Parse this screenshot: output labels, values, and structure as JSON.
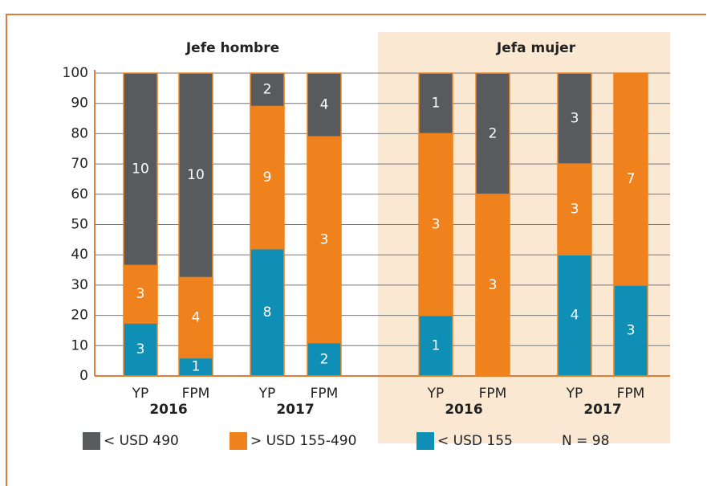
{
  "chart_data": {
    "type": "stacked_bar",
    "panels": [
      "Jefe hombre",
      "Jefa mujer"
    ],
    "categories": [
      "YP",
      "FPM",
      "YP",
      "FPM",
      "YP",
      "FPM",
      "YP",
      "FPM"
    ],
    "year_labels": [
      "2016",
      "2017",
      "2016",
      "2017"
    ],
    "series": [
      {
        "name": "< USD 490",
        "color": "#575b5e",
        "values": [
          63.5,
          67.5,
          11,
          21,
          20,
          40,
          30,
          0
        ],
        "counts": [
          "10",
          "10",
          "2",
          "4",
          "1",
          "2",
          "3",
          null
        ]
      },
      {
        "name": "> USD 155-490",
        "color": "#f0821e",
        "values": [
          19,
          26.5,
          47,
          68,
          60,
          60,
          30,
          70
        ],
        "counts": [
          "3",
          "4",
          "9",
          "3",
          "3",
          "3",
          "3",
          "7"
        ]
      },
      {
        "name": "< USD 155",
        "color": "#0f8fb5",
        "values": [
          17.5,
          6,
          42,
          11,
          20,
          0,
          40,
          30
        ],
        "counts": [
          "3",
          "1",
          "8",
          "2",
          "1",
          null,
          "4",
          "3"
        ]
      }
    ],
    "note": "N = 98",
    "ylim": [
      0,
      100
    ],
    "yticks": [
      0,
      10,
      20,
      30,
      40,
      50,
      60,
      70,
      80,
      90,
      100
    ],
    "grid": true
  }
}
